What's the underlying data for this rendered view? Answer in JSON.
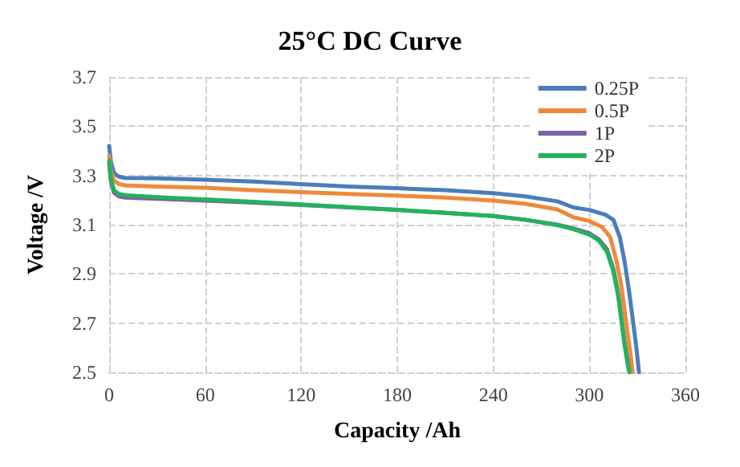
{
  "chart_data": {
    "type": "line",
    "title": "25°C DC Curve",
    "xlabel": "Capacity /Ah",
    "ylabel": "Voltage /V",
    "xlim": [
      0,
      360
    ],
    "xticks": [
      0,
      60,
      120,
      180,
      240,
      300,
      360
    ],
    "ylim": [
      2.5,
      3.7
    ],
    "yticks": [
      2.5,
      2.7,
      2.9,
      3.1,
      3.3,
      3.5,
      3.7
    ],
    "grid": true,
    "legend": "top right",
    "marker": "none",
    "line_style": "solid",
    "series": [
      {
        "name": "0.25P",
        "color": "#4a7ebb",
        "x": [
          0,
          1,
          3,
          6,
          10,
          30,
          60,
          90,
          120,
          150,
          180,
          210,
          240,
          260,
          280,
          290,
          300,
          310,
          315,
          319,
          322,
          325,
          327,
          329,
          330,
          331
        ],
        "values": [
          3.42,
          3.36,
          3.31,
          3.295,
          3.29,
          3.288,
          3.283,
          3.275,
          3.265,
          3.255,
          3.248,
          3.24,
          3.228,
          3.215,
          3.195,
          3.17,
          3.16,
          3.14,
          3.12,
          3.05,
          2.95,
          2.82,
          2.72,
          2.62,
          2.56,
          2.5
        ]
      },
      {
        "name": "0.5P",
        "color": "#ee8a3a",
        "x": [
          0,
          1,
          3,
          6,
          10,
          30,
          60,
          90,
          120,
          150,
          180,
          210,
          240,
          260,
          280,
          290,
          300,
          308,
          313,
          317,
          320,
          322,
          324,
          326,
          327
        ],
        "values": [
          3.38,
          3.32,
          3.28,
          3.265,
          3.26,
          3.255,
          3.25,
          3.24,
          3.232,
          3.225,
          3.218,
          3.21,
          3.198,
          3.185,
          3.162,
          3.13,
          3.115,
          3.09,
          3.05,
          2.95,
          2.85,
          2.75,
          2.65,
          2.56,
          2.5
        ]
      },
      {
        "name": "1P",
        "color": "#7f5fa8",
        "x": [
          0,
          1,
          3,
          6,
          10,
          30,
          60,
          90,
          120,
          150,
          180,
          210,
          240,
          260,
          280,
          290,
          300,
          306,
          311,
          315,
          318,
          320,
          322,
          324,
          325
        ],
        "values": [
          3.35,
          3.28,
          3.23,
          3.215,
          3.21,
          3.205,
          3.198,
          3.19,
          3.18,
          3.17,
          3.16,
          3.148,
          3.135,
          3.12,
          3.1,
          3.085,
          3.065,
          3.04,
          3.0,
          2.92,
          2.82,
          2.72,
          2.62,
          2.54,
          2.5
        ]
      },
      {
        "name": "2P",
        "color": "#22b35a",
        "x": [
          0,
          1,
          3,
          6,
          10,
          30,
          60,
          90,
          120,
          150,
          180,
          210,
          240,
          260,
          280,
          290,
          300,
          306,
          311,
          315,
          318,
          320,
          322,
          324,
          325
        ],
        "values": [
          3.36,
          3.29,
          3.24,
          3.225,
          3.22,
          3.212,
          3.203,
          3.193,
          3.182,
          3.171,
          3.16,
          3.148,
          3.135,
          3.12,
          3.098,
          3.082,
          3.06,
          3.035,
          2.99,
          2.91,
          2.81,
          2.71,
          2.61,
          2.53,
          2.5
        ]
      }
    ]
  }
}
